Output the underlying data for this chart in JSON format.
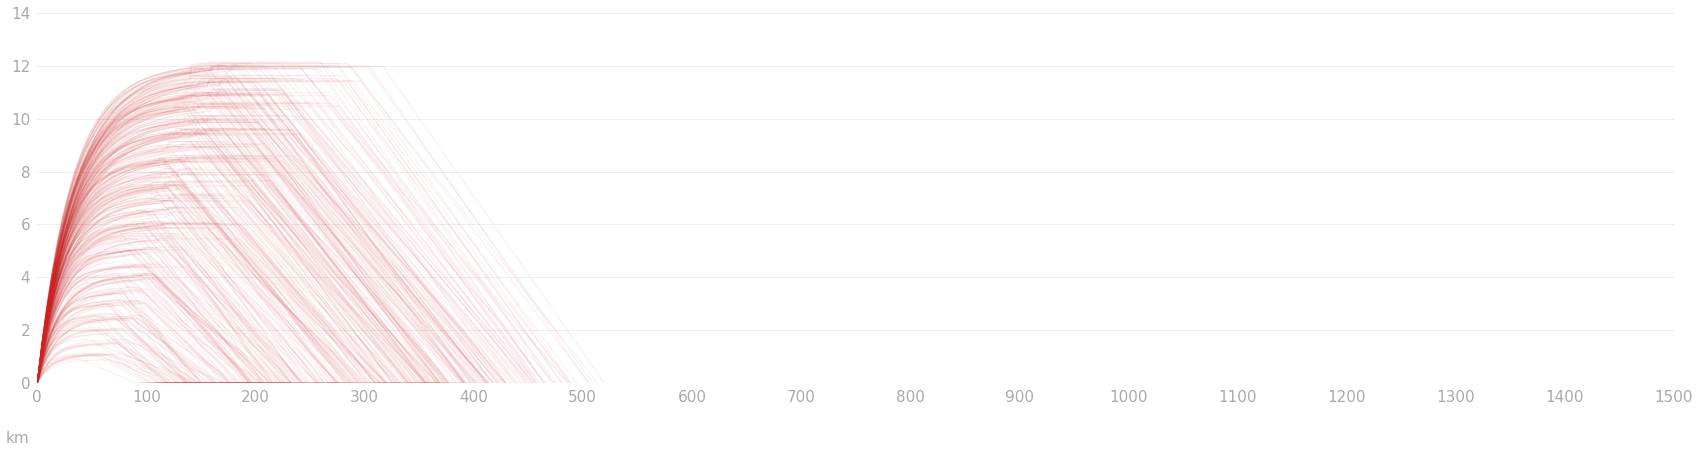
{
  "line_color": "#cc2222",
  "line_alpha": 0.07,
  "line_width": 0.8,
  "background_color": "#ffffff",
  "ylim": [
    0,
    14
  ],
  "xlim": [
    0,
    1500
  ],
  "yticks": [
    0,
    2,
    4,
    6,
    8,
    10,
    12,
    14
  ],
  "xticks": [
    0,
    100,
    200,
    300,
    400,
    500,
    600,
    700,
    800,
    900,
    1000,
    1100,
    1200,
    1300,
    1400,
    1500
  ],
  "xlabel": "km",
  "tick_color": "#aaaaaa",
  "tick_fontsize": 11,
  "n_flights": 400,
  "cruise_levels": [
    1.0,
    1.5,
    2.0,
    2.5,
    3.0,
    3.5,
    4.0,
    4.5,
    5.0,
    5.5,
    6.0,
    6.5,
    7.0,
    7.5,
    8.0,
    8.5,
    9.0,
    9.5,
    10.0,
    10.5,
    11.0,
    11.5,
    12.0
  ],
  "figsize": [
    17.0,
    4.5
  ],
  "dpi": 100
}
